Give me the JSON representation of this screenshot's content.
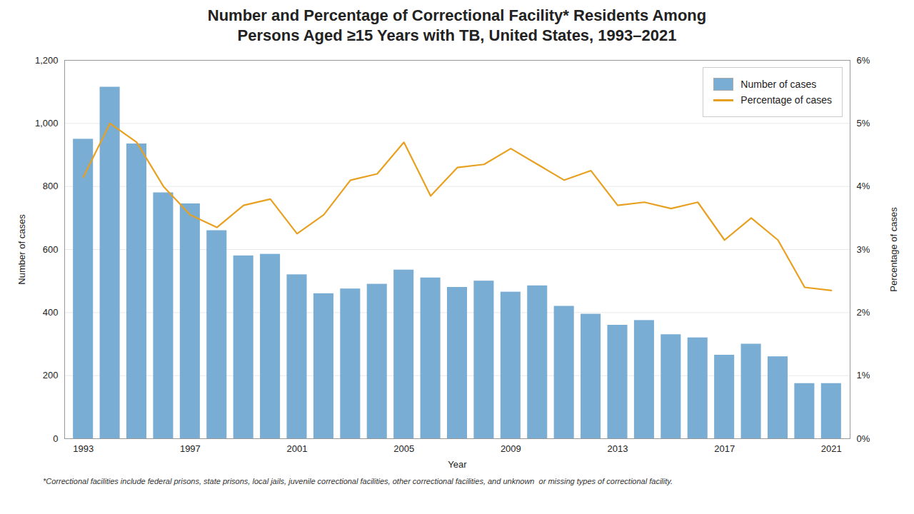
{
  "chart_data": {
    "type": "bar",
    "title": "Number and Percentage of Correctional Facility* Residents Among",
    "subtitle": "Persons Aged ≥15 Years with TB, United States, 1993–2021",
    "xlabel": "Year",
    "ylabel": "Number of cases",
    "y2label": "Percentage of cases",
    "annotations": [
      "*Correctional facilities include federal prisons, state prisons, local jails, juvenile correctional facilities, other correctional facilities, and unknown  or missing types of correctional facility."
    ],
    "x": [
      1993,
      1994,
      1995,
      1996,
      1997,
      1998,
      1999,
      2000,
      2001,
      2002,
      2003,
      2004,
      2005,
      2006,
      2007,
      2008,
      2009,
      2010,
      2011,
      2012,
      2013,
      2014,
      2015,
      2016,
      2017,
      2018,
      2019,
      2020,
      2021
    ],
    "series": [
      {
        "name": "Number of cases",
        "type": "bar",
        "color": "#7aadd4",
        "values": [
          950,
          1115,
          935,
          780,
          745,
          660,
          580,
          585,
          520,
          460,
          475,
          490,
          535,
          510,
          480,
          500,
          465,
          485,
          420,
          395,
          360,
          375,
          330,
          320,
          265,
          300,
          260,
          175,
          175
        ]
      },
      {
        "name": "Percentage of cases",
        "type": "line",
        "color": "#e8a020",
        "axis": "y2",
        "values": [
          0.0415,
          0.05,
          0.047,
          0.04,
          0.0355,
          0.0335,
          0.037,
          0.038,
          0.0325,
          0.0355,
          0.041,
          0.042,
          0.047,
          0.0385,
          0.043,
          0.0435,
          0.046,
          0.0435,
          0.041,
          0.0425,
          0.037,
          0.0375,
          0.0365,
          0.0375,
          0.0315,
          0.035,
          0.0315,
          0.024,
          0.0235
        ]
      }
    ],
    "xlim": [
      1992.3,
      2021.7
    ],
    "xticks": [
      1993,
      1997,
      2001,
      2005,
      2009,
      2013,
      2017,
      2021
    ],
    "ylim": [
      0,
      1200
    ],
    "yticks": [
      0,
      200,
      400,
      600,
      800,
      {
        "value": 1000,
        "label": "1,000"
      },
      {
        "value": 1200,
        "label": "1,200"
      }
    ],
    "y2lim": [
      0,
      0.06
    ],
    "y2ticks": [
      {
        "value": 0,
        "label": "0%"
      },
      {
        "value": 0.01,
        "label": "1%"
      },
      {
        "value": 0.02,
        "label": "2%"
      },
      {
        "value": 0.03,
        "label": "3%"
      },
      {
        "value": 0.04,
        "label": "4%"
      },
      {
        "value": 0.05,
        "label": "5%"
      },
      {
        "value": 0.06,
        "label": "6%"
      }
    ],
    "grid": true,
    "legend": "upper right"
  }
}
